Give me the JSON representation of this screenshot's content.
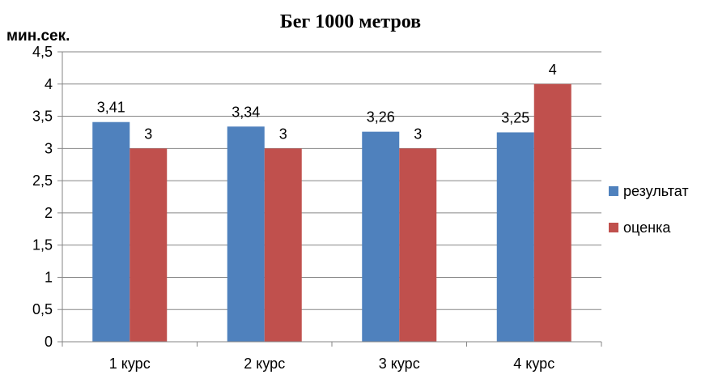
{
  "chart_data": {
    "type": "bar",
    "title": "Бег 1000 метров",
    "ylabel": "мин.сек.",
    "xlabel": "",
    "categories": [
      "1 курс",
      "2 курс",
      "3 курс",
      "4 курс"
    ],
    "series": [
      {
        "name": "результат",
        "color": "#4f81bd",
        "values": [
          3.41,
          3.34,
          3.26,
          3.25
        ],
        "labels": [
          "3,41",
          "3,34",
          "3,26",
          "3,25"
        ]
      },
      {
        "name": "оценка",
        "color": "#c0504d",
        "values": [
          3,
          3,
          3,
          4
        ],
        "labels": [
          "3",
          "3",
          "3",
          "4"
        ]
      }
    ],
    "ylim": [
      0,
      4.5
    ],
    "yticks": [
      {
        "value": 0,
        "label": "0"
      },
      {
        "value": 0.5,
        "label": "0,5"
      },
      {
        "value": 1,
        "label": "1"
      },
      {
        "value": 1.5,
        "label": "1,5"
      },
      {
        "value": 2,
        "label": "2"
      },
      {
        "value": 2.5,
        "label": "2,5"
      },
      {
        "value": 3,
        "label": "3"
      },
      {
        "value": 3.5,
        "label": "3,5"
      },
      {
        "value": 4,
        "label": "4"
      },
      {
        "value": 4.5,
        "label": "4,5"
      }
    ],
    "grid": true,
    "legend_position": "right"
  }
}
